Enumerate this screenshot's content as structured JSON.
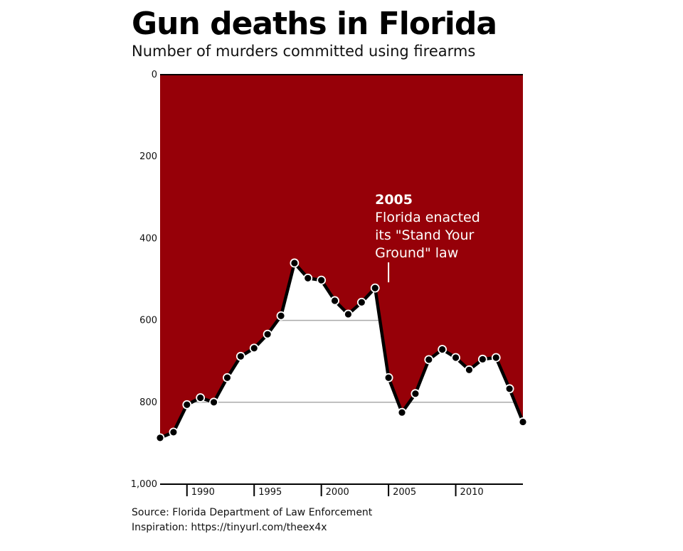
{
  "title": "Gun deaths in Florida",
  "subtitle": "Number of murders committed using firearms",
  "source_line": "Source: Florida Department of Law Enforcement",
  "inspiration_line": "Inspiration: https://tinyurl.com/theex4x",
  "colors": {
    "fill": "#960008",
    "line": "#000000",
    "grid": "#aaaaaa",
    "annotation": "#ffffff"
  },
  "chart_data": {
    "type": "area",
    "title": "Gun deaths in Florida",
    "subtitle": "Number of murders committed using firearms",
    "y_inverted": true,
    "ylim": [
      0,
      1000
    ],
    "xlim": [
      1988,
      2015
    ],
    "y_ticks": [
      0,
      200,
      400,
      600,
      800,
      1000
    ],
    "y_tick_labels": [
      "0",
      "200",
      "400",
      "600",
      "800",
      "1,000"
    ],
    "x_ticks": [
      1990,
      1995,
      2000,
      2005,
      2010
    ],
    "x_tick_labels": [
      "1990",
      "1995",
      "2000",
      "2005",
      "2010"
    ],
    "gridlines": [
      600,
      800
    ],
    "series": [
      {
        "x": [
          1988,
          1989,
          1990,
          1991,
          1992,
          1993,
          1994,
          1995,
          1996,
          1997,
          1998,
          1999,
          2000,
          2001,
          2002,
          2003,
          2004,
          2005,
          2006,
          2007,
          2008,
          2009,
          2010,
          2011,
          2012,
          2013,
          2014,
          2015
        ],
        "values": [
          887,
          873,
          806,
          789,
          800,
          740,
          688,
          668,
          634,
          589,
          460,
          497,
          502,
          552,
          585,
          556,
          521,
          740,
          825,
          779,
          696,
          671,
          691,
          721,
          695,
          691,
          767,
          848
        ]
      }
    ],
    "annotation": {
      "x": 2005,
      "y": 521,
      "year": "2005",
      "lines": [
        "Florida enacted",
        "its \"Stand Your",
        "Ground\" law"
      ]
    }
  }
}
